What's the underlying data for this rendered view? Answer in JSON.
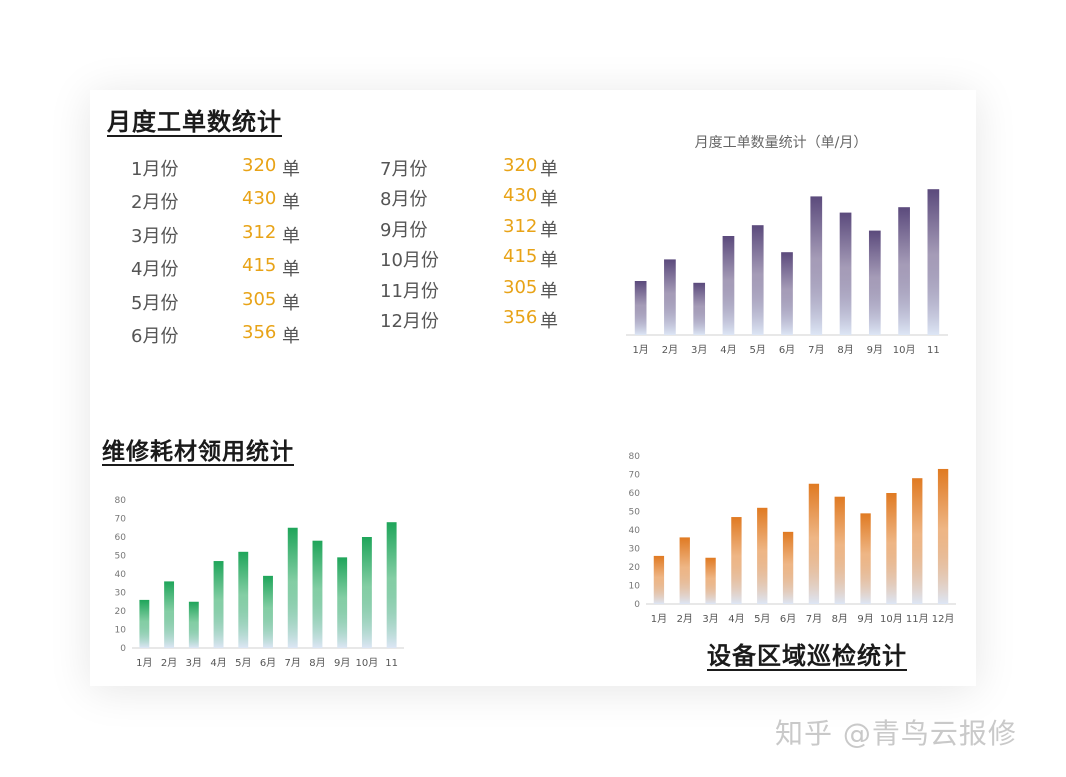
{
  "sections": {
    "work_orders": {
      "title": "月度工单数统计",
      "col1": [
        {
          "month": "1月份",
          "value": "320",
          "unit": "单"
        },
        {
          "month": "2月份",
          "value": "430",
          "unit": "单"
        },
        {
          "month": "3月份",
          "value": "312",
          "unit": "单"
        },
        {
          "month": "4月份",
          "value": "415",
          "unit": "单"
        },
        {
          "month": "5月份",
          "value": "305",
          "unit": "单"
        },
        {
          "month": "6月份",
          "value": "356",
          "unit": "单"
        }
      ],
      "col2": [
        {
          "month": "7月份",
          "value": "320",
          "unit": "单"
        },
        {
          "month": "8月份",
          "value": "430",
          "unit": "单"
        },
        {
          "month": "9月份",
          "value": "312",
          "unit": "单"
        },
        {
          "month": "10月份",
          "value": "415",
          "unit": "单"
        },
        {
          "month": "11月份",
          "value": "305",
          "unit": "单"
        },
        {
          "month": "12月份",
          "value": "356",
          "unit": "单"
        }
      ]
    },
    "materials": {
      "title": "维修耗材领用统计"
    },
    "inspection": {
      "title": "设备区域巡检统计"
    }
  },
  "watermark": "知乎 @青鸟云报修",
  "chart_data": [
    {
      "id": "work-orders-chart",
      "type": "bar",
      "title": "月度工单数量统计（单/月）",
      "categories": [
        "1月",
        "2月",
        "3月",
        "4月",
        "5月",
        "6月",
        "7月",
        "8月",
        "9月",
        "10月",
        "11"
      ],
      "values": [
        30,
        42,
        29,
        55,
        61,
        46,
        77,
        68,
        58,
        71,
        81
      ],
      "ylim": [
        0,
        85
      ],
      "show_y_axis": false,
      "grid": false,
      "color_top": "#5b4a7c",
      "color_bottom": "#dde6f5"
    },
    {
      "id": "materials-chart",
      "type": "bar",
      "title": "",
      "categories": [
        "1月",
        "2月",
        "3月",
        "4月",
        "5月",
        "6月",
        "7月",
        "8月",
        "9月",
        "10月",
        "11"
      ],
      "values": [
        26,
        36,
        25,
        47,
        52,
        39,
        65,
        58,
        49,
        60,
        68
      ],
      "ylim": [
        0,
        80
      ],
      "yticks": [
        0,
        10,
        20,
        30,
        40,
        50,
        60,
        70,
        80
      ],
      "show_y_axis": true,
      "grid": false,
      "color_top": "#1fa55a",
      "color_bottom": "#dde6f5"
    },
    {
      "id": "inspection-chart",
      "type": "bar",
      "title": "",
      "categories": [
        "1月",
        "2月",
        "3月",
        "4月",
        "5月",
        "6月",
        "7月",
        "8月",
        "9月",
        "10月",
        "11月",
        "12月"
      ],
      "values": [
        26,
        36,
        25,
        47,
        52,
        39,
        65,
        58,
        49,
        60,
        68,
        73
      ],
      "ylim": [
        0,
        80
      ],
      "yticks": [
        0,
        10,
        20,
        30,
        40,
        50,
        60,
        70,
        80
      ],
      "show_y_axis": true,
      "grid": false,
      "color_top": "#e07a22",
      "color_bottom": "#dde6f5"
    }
  ]
}
